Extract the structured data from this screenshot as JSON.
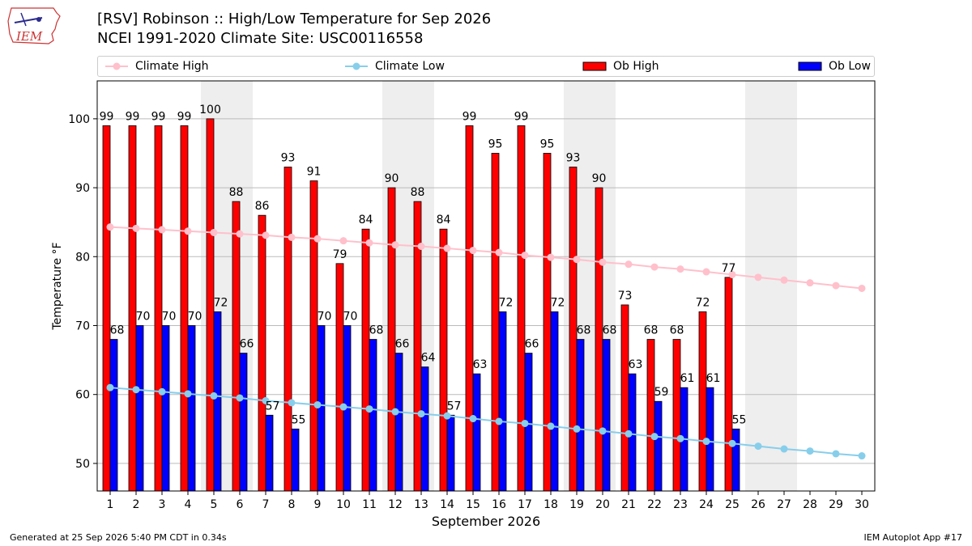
{
  "header": {
    "title": "[RSV] Robinson :: High/Low Temperature for Sep 2026",
    "subtitle": "NCEI 1991-2020 Climate Site: USC00116558",
    "logo_text": "IEM"
  },
  "legend": {
    "climate_high": "Climate High",
    "climate_low": "Climate Low",
    "ob_high": "Ob High",
    "ob_low": "Ob Low"
  },
  "footer": {
    "generated": "Generated at 25 Sep 2026 5:40 PM CDT in 0.34s",
    "app": "IEM Autoplot App #17"
  },
  "colors": {
    "ob_high": "#ff0000",
    "ob_low": "#0000ff",
    "climate_high": "#ffc0cb",
    "climate_low": "#87ceeb",
    "weekend_shade": "#eeeeee",
    "grid": "#bbbbbb"
  },
  "chart_data": {
    "type": "bar",
    "xlabel": "September 2026",
    "ylabel": "Temperature °F",
    "ylim": [
      46,
      105.5
    ],
    "yticks": [
      50,
      60,
      70,
      80,
      90,
      100
    ],
    "grid": "horizontal",
    "legend_position": "top",
    "days": [
      1,
      2,
      3,
      4,
      5,
      6,
      7,
      8,
      9,
      10,
      11,
      12,
      13,
      14,
      15,
      16,
      17,
      18,
      19,
      20,
      21,
      22,
      23,
      24,
      25,
      26,
      27,
      28,
      29,
      30
    ],
    "shaded_days": [
      [
        5,
        6
      ],
      [
        12,
        13
      ],
      [
        19,
        20
      ],
      [
        26,
        27
      ]
    ],
    "ob_high": [
      99,
      99,
      99,
      99,
      100,
      88,
      86,
      93,
      91,
      79,
      84,
      90,
      88,
      84,
      99,
      95,
      99,
      95,
      93,
      90,
      73,
      68,
      68,
      72,
      77
    ],
    "ob_low": [
      68,
      70,
      70,
      70,
      72,
      66,
      57,
      55,
      70,
      70,
      68,
      66,
      64,
      57,
      63,
      72,
      66,
      72,
      68,
      68,
      63,
      59,
      61,
      61,
      55
    ],
    "climate_high": [
      84.3,
      84.1,
      83.9,
      83.7,
      83.5,
      83.3,
      83.1,
      82.8,
      82.6,
      82.3,
      82.0,
      81.7,
      81.5,
      81.2,
      80.9,
      80.6,
      80.2,
      79.9,
      79.6,
      79.2,
      78.9,
      78.5,
      78.2,
      77.8,
      77.4,
      77.0,
      76.6,
      76.2,
      75.8,
      75.4
    ],
    "climate_low": [
      61.0,
      60.7,
      60.4,
      60.1,
      59.8,
      59.5,
      59.1,
      58.8,
      58.5,
      58.2,
      57.9,
      57.5,
      57.2,
      56.9,
      56.5,
      56.1,
      55.8,
      55.4,
      55.0,
      54.7,
      54.3,
      53.9,
      53.6,
      53.2,
      52.9,
      52.5,
      52.1,
      51.8,
      51.4,
      51.1
    ]
  }
}
